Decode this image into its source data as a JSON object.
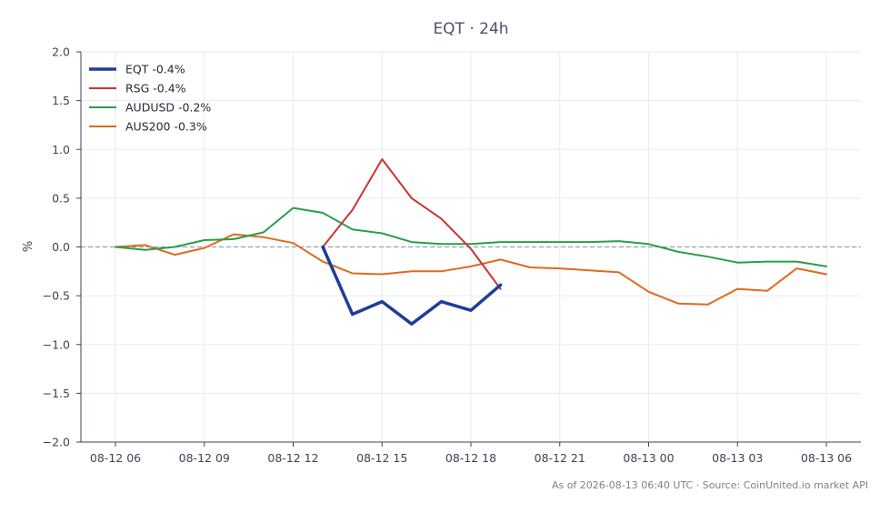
{
  "chart_data": {
    "type": "line",
    "title": "EQT · 24h",
    "ylabel": "%",
    "xlabel": "",
    "ylim": [
      -2.0,
      2.0
    ],
    "y_ticks": [
      2.0,
      1.5,
      1.0,
      0.5,
      0.0,
      -0.5,
      -1.0,
      -1.5,
      -2.0
    ],
    "y_tick_labels": [
      "2.0",
      "1.5",
      "1.0",
      "0.5",
      "0.0",
      "−0.5",
      "−1.0",
      "−1.5",
      "−2.0"
    ],
    "x_ticks": [
      "2026-08-12 06:00",
      "2026-08-12 09:00",
      "2026-08-12 12:00",
      "2026-08-12 15:00",
      "2026-08-12 18:00",
      "2026-08-12 21:00",
      "2026-08-13 00:00",
      "2026-08-13 03:00",
      "2026-08-13 06:00"
    ],
    "x_tick_labels": [
      "08-12 06",
      "08-12 09",
      "08-12 12",
      "08-12 15",
      "08-12 18",
      "08-12 21",
      "08-13 00",
      "08-13 03",
      "08-13 06"
    ],
    "xlim": [
      "2026-08-12 04:50",
      "2026-08-13 07:10"
    ],
    "grid": true,
    "legend_position": "top-left",
    "zero_line": true,
    "series": [
      {
        "name": "EQT -0.4%",
        "color": "#1f3d99",
        "emphasis": true,
        "x": [
          "2026-08-12 13:00",
          "2026-08-12 14:00",
          "2026-08-12 15:00",
          "2026-08-12 16:00",
          "2026-08-12 17:00",
          "2026-08-12 18:00",
          "2026-08-12 19:00"
        ],
        "values": [
          0.0,
          -0.69,
          -0.56,
          -0.79,
          -0.56,
          -0.65,
          -0.39
        ]
      },
      {
        "name": "RSG -0.4%",
        "color": "#cc3333",
        "emphasis": false,
        "x": [
          "2026-08-12 13:00",
          "2026-08-12 14:00",
          "2026-08-12 15:00",
          "2026-08-12 16:00",
          "2026-08-12 17:00",
          "2026-08-12 18:00",
          "2026-08-12 19:00"
        ],
        "values": [
          0.0,
          0.38,
          0.9,
          0.5,
          0.29,
          -0.02,
          -0.43
        ]
      },
      {
        "name": "AUDUSD -0.2%",
        "color": "#2a9d4a",
        "emphasis": false,
        "x": [
          "2026-08-12 06:00",
          "2026-08-12 07:00",
          "2026-08-12 08:00",
          "2026-08-12 09:00",
          "2026-08-12 10:00",
          "2026-08-12 11:00",
          "2026-08-12 12:00",
          "2026-08-12 13:00",
          "2026-08-12 14:00",
          "2026-08-12 15:00",
          "2026-08-12 16:00",
          "2026-08-12 17:00",
          "2026-08-12 18:00",
          "2026-08-12 19:00",
          "2026-08-12 20:00",
          "2026-08-12 21:00",
          "2026-08-12 22:00",
          "2026-08-12 23:00",
          "2026-08-13 00:00",
          "2026-08-13 01:00",
          "2026-08-13 02:00",
          "2026-08-13 03:00",
          "2026-08-13 04:00",
          "2026-08-13 05:00",
          "2026-08-13 06:00"
        ],
        "values": [
          0.0,
          -0.03,
          0.0,
          0.07,
          0.08,
          0.15,
          0.4,
          0.35,
          0.18,
          0.14,
          0.05,
          0.03,
          0.03,
          0.05,
          0.05,
          0.05,
          0.05,
          0.06,
          0.03,
          -0.05,
          -0.1,
          -0.16,
          -0.15,
          -0.15,
          -0.2
        ]
      },
      {
        "name": "AUS200 -0.3%",
        "color": "#e06a1c",
        "emphasis": false,
        "x": [
          "2026-08-12 06:00",
          "2026-08-12 07:00",
          "2026-08-12 08:00",
          "2026-08-12 09:00",
          "2026-08-12 10:00",
          "2026-08-12 11:00",
          "2026-08-12 12:00",
          "2026-08-12 13:00",
          "2026-08-12 14:00",
          "2026-08-12 15:00",
          "2026-08-12 16:00",
          "2026-08-12 17:00",
          "2026-08-12 18:00",
          "2026-08-12 19:00",
          "2026-08-12 20:00",
          "2026-08-12 21:00",
          "2026-08-12 22:00",
          "2026-08-12 23:00",
          "2026-08-13 00:00",
          "2026-08-13 01:00",
          "2026-08-13 02:00",
          "2026-08-13 03:00",
          "2026-08-13 04:00",
          "2026-08-13 05:00",
          "2026-08-13 06:00"
        ],
        "values": [
          0.0,
          0.02,
          -0.08,
          -0.01,
          0.13,
          0.1,
          0.04,
          -0.15,
          -0.27,
          -0.28,
          -0.25,
          -0.25,
          -0.2,
          -0.13,
          -0.21,
          -0.22,
          -0.24,
          -0.26,
          -0.46,
          -0.58,
          -0.59,
          -0.43,
          -0.45,
          -0.22,
          -0.28
        ]
      }
    ],
    "footer": "As of 2026-08-13 06:40 UTC · Source: CoinUnited.io market API"
  }
}
